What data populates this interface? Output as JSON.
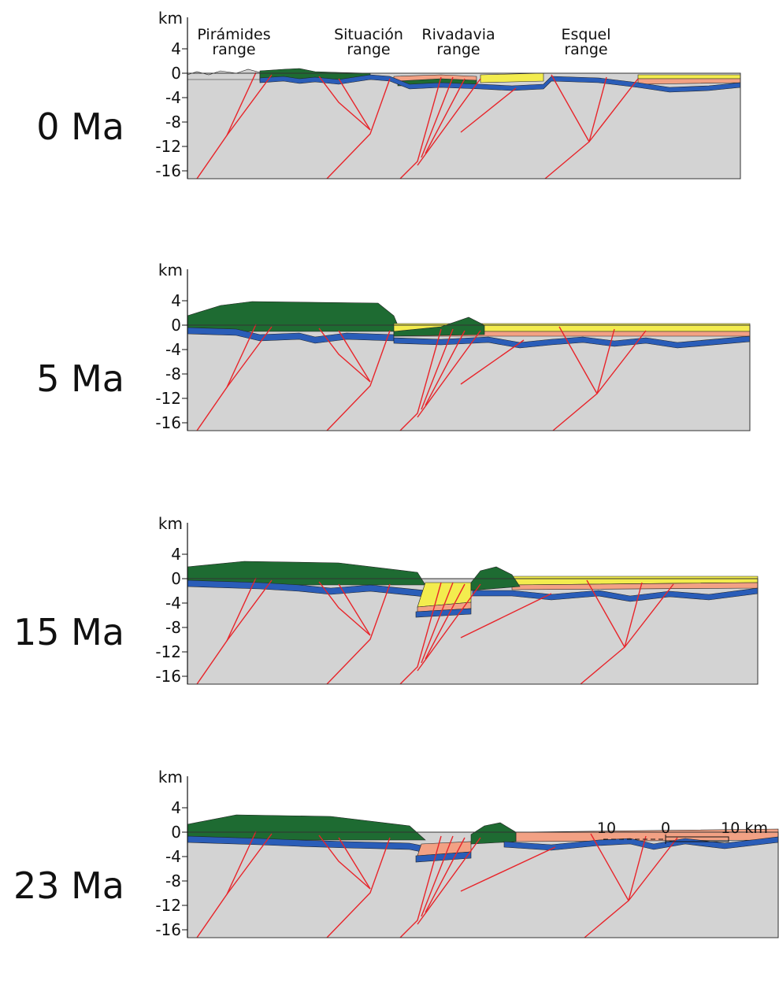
{
  "ranges": [
    {
      "name": "Pirámides",
      "sub": "range"
    },
    {
      "name": "Situación",
      "sub": "range"
    },
    {
      "name": "Rivadavia",
      "sub": "range"
    },
    {
      "name": "Esquel",
      "sub": "range"
    }
  ],
  "panels": [
    {
      "label": "0 Ma",
      "unit": "km",
      "ticks": [
        "4",
        "0",
        "-4",
        "-8",
        "-12",
        "-16"
      ]
    },
    {
      "label": "5 Ma",
      "unit": "km",
      "ticks": [
        "4",
        "0",
        "-4",
        "-8",
        "-12",
        "-16"
      ]
    },
    {
      "label": "15 Ma",
      "unit": "km",
      "ticks": [
        "4",
        "0",
        "-4",
        "-8",
        "-12",
        "-16"
      ]
    },
    {
      "label": "23 Ma",
      "unit": "km",
      "ticks": [
        "4",
        "0",
        "-4",
        "-8",
        "-12",
        "-16"
      ]
    }
  ],
  "scale_bar": {
    "left": "10",
    "middle": "0",
    "right": "10 km"
  }
}
